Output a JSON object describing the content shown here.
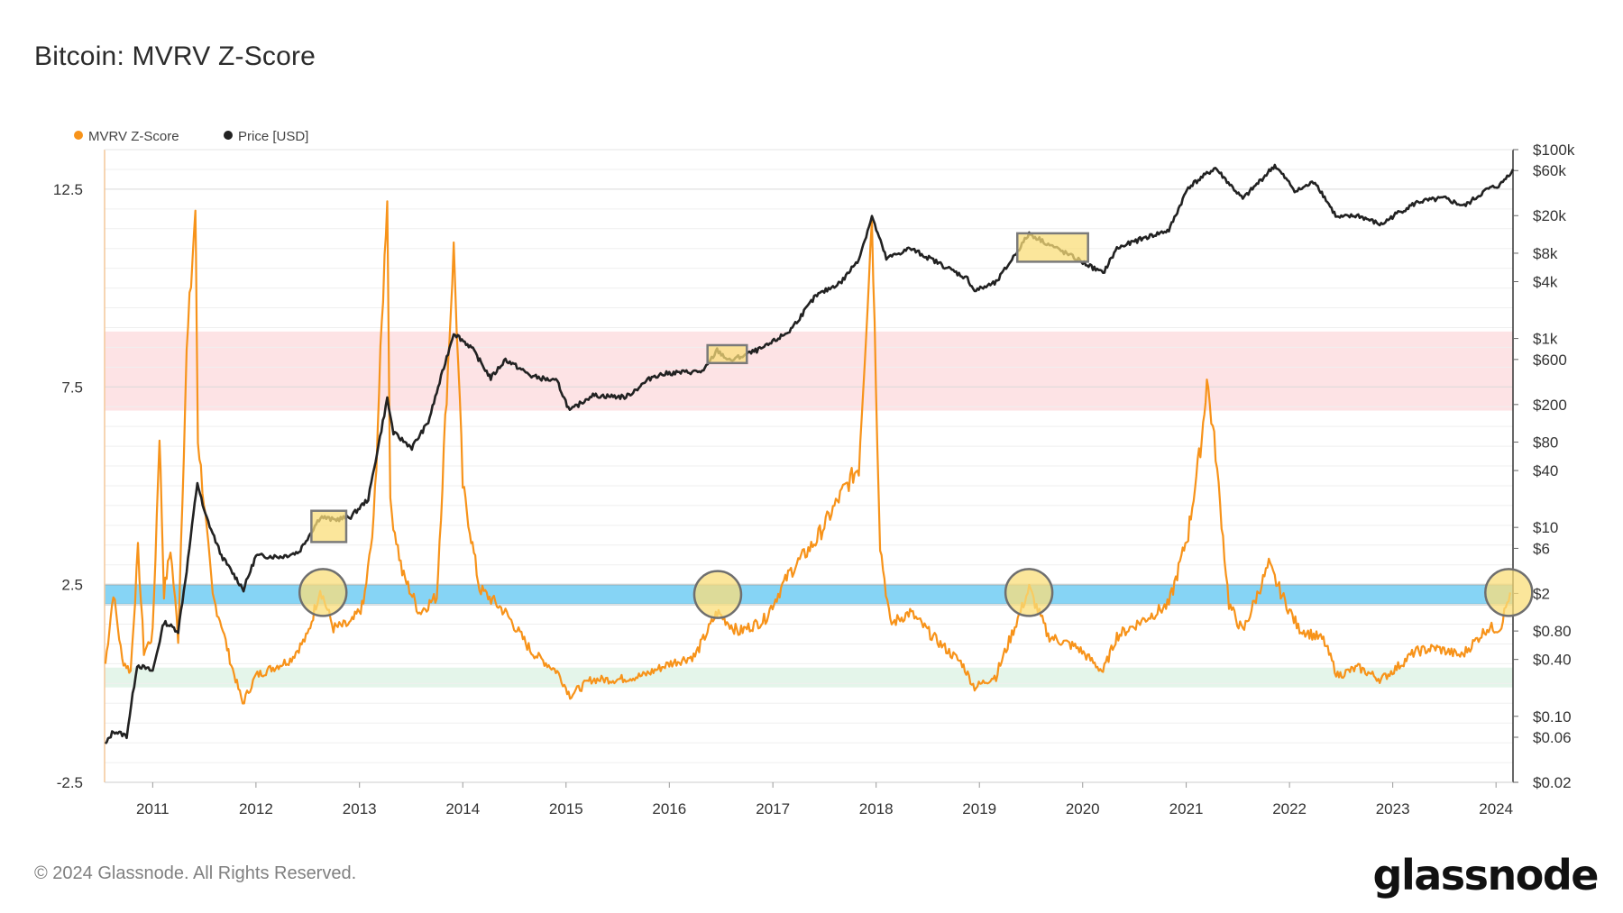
{
  "title": "Bitcoin: MVRV Z-Score",
  "footer": {
    "copyright": "© 2024 Glassnode. All Rights Reserved.",
    "logo_text": "glassnode"
  },
  "colors": {
    "zscore": "#f7931a",
    "price": "#222222",
    "red_band": "#fde3e5",
    "green_band": "#e4f5ea",
    "blue_band": "#86d4f5",
    "highlight": "#f9dd7a"
  },
  "chart_data": {
    "type": "line",
    "legend": {
      "placement": "top-left",
      "items": [
        {
          "label": "MVRV Z-Score",
          "color": "#f7931a"
        },
        {
          "label": "Price [USD]",
          "color": "#222222"
        }
      ]
    },
    "x_range": [
      "2010-07-15",
      "2024-03-01"
    ],
    "x_ticks": [
      "2011",
      "2012",
      "2013",
      "2014",
      "2015",
      "2016",
      "2017",
      "2018",
      "2019",
      "2020",
      "2021",
      "2022",
      "2023",
      "2024"
    ],
    "left_axis": {
      "scale": "linear",
      "range": [
        -2.5,
        13.5
      ],
      "ticks": [
        -2.5,
        2.5,
        7.5,
        12.5
      ],
      "tick_labels": [
        "-2.5",
        "2.5",
        "7.5",
        "12.5"
      ]
    },
    "right_axis": {
      "scale": "log",
      "range": [
        0.02,
        100000
      ],
      "ticks": [
        0.02,
        0.06,
        0.1,
        0.4,
        0.8,
        2,
        6,
        10,
        40,
        80,
        200,
        600,
        1000,
        4000,
        8000,
        20000,
        60000,
        100000
      ],
      "tick_labels": [
        "$0.02",
        "$0.06",
        "$0.10",
        "$0.40",
        "$0.80",
        "$2",
        "$6",
        "$10",
        "$40",
        "$80",
        "$200",
        "$600",
        "$1k",
        "$4k",
        "$8k",
        "$20k",
        "$60k",
        "$100k"
      ]
    },
    "bands": [
      {
        "name": "red",
        "axis": "left",
        "from": 6.9,
        "to": 8.9
      },
      {
        "name": "blue",
        "axis": "left",
        "from": 2.0,
        "to": 2.5
      },
      {
        "name": "green",
        "axis": "left",
        "from": -0.1,
        "to": 0.4
      }
    ],
    "series": [
      {
        "name": "MVRV Z-Score",
        "axis": "left",
        "points": [
          [
            "2010-07-18",
            0.5
          ],
          [
            "2010-08-15",
            2.3
          ],
          [
            "2010-09-15",
            0.6
          ],
          [
            "2010-10-15",
            0.3
          ],
          [
            "2010-11-10",
            3.4
          ],
          [
            "2010-12-01",
            0.8
          ],
          [
            "2011-01-01",
            1.2
          ],
          [
            "2011-01-25",
            6.3
          ],
          [
            "2011-02-10",
            2.3
          ],
          [
            "2011-03-05",
            3.4
          ],
          [
            "2011-04-01",
            1.2
          ],
          [
            "2011-05-01",
            8.3
          ],
          [
            "2011-06-01",
            12.0
          ],
          [
            "2011-06-10",
            6.2
          ],
          [
            "2011-07-01",
            4.6
          ],
          [
            "2011-08-01",
            2.2
          ],
          [
            "2011-09-01",
            1.5
          ],
          [
            "2011-10-01",
            0.6
          ],
          [
            "2011-11-15",
            -0.5
          ],
          [
            "2012-01-01",
            0.2
          ],
          [
            "2012-03-01",
            0.4
          ],
          [
            "2012-05-01",
            0.6
          ],
          [
            "2012-07-01",
            1.2
          ],
          [
            "2012-08-15",
            2.4
          ],
          [
            "2012-10-01",
            1.4
          ],
          [
            "2012-12-01",
            1.5
          ],
          [
            "2013-01-15",
            2.0
          ],
          [
            "2013-02-20",
            4.0
          ],
          [
            "2013-04-09",
            12.4
          ],
          [
            "2013-04-20",
            4.5
          ],
          [
            "2013-06-01",
            2.8
          ],
          [
            "2013-08-01",
            1.8
          ],
          [
            "2013-10-01",
            2.2
          ],
          [
            "2013-11-30",
            11.0
          ],
          [
            "2014-01-01",
            5.0
          ],
          [
            "2014-03-01",
            2.4
          ],
          [
            "2014-06-01",
            1.8
          ],
          [
            "2014-09-01",
            0.8
          ],
          [
            "2014-12-01",
            0.3
          ],
          [
            "2015-01-15",
            -0.3
          ],
          [
            "2015-04-01",
            0.1
          ],
          [
            "2015-07-01",
            0.1
          ],
          [
            "2015-10-01",
            0.2
          ],
          [
            "2016-01-01",
            0.5
          ],
          [
            "2016-04-01",
            0.7
          ],
          [
            "2016-06-18",
            1.8
          ],
          [
            "2016-09-01",
            1.3
          ],
          [
            "2016-12-01",
            1.6
          ],
          [
            "2017-03-01",
            2.8
          ],
          [
            "2017-06-01",
            3.6
          ],
          [
            "2017-09-01",
            4.8
          ],
          [
            "2017-11-01",
            5.5
          ],
          [
            "2017-12-17",
            11.8
          ],
          [
            "2018-01-15",
            3.5
          ],
          [
            "2018-02-20",
            1.5
          ],
          [
            "2018-05-01",
            1.8
          ],
          [
            "2018-08-01",
            1.1
          ],
          [
            "2018-11-01",
            0.5
          ],
          [
            "2018-12-15",
            -0.1
          ],
          [
            "2019-03-01",
            0.2
          ],
          [
            "2019-06-26",
            2.4
          ],
          [
            "2019-09-01",
            1.2
          ],
          [
            "2019-12-15",
            0.9
          ],
          [
            "2020-03-13",
            0.3
          ],
          [
            "2020-05-01",
            1.2
          ],
          [
            "2020-08-01",
            1.6
          ],
          [
            "2020-11-01",
            2.0
          ],
          [
            "2021-01-08",
            3.8
          ],
          [
            "2021-02-25",
            6.2
          ],
          [
            "2021-03-15",
            7.7
          ],
          [
            "2021-04-15",
            5.8
          ],
          [
            "2021-06-01",
            2.0
          ],
          [
            "2021-07-20",
            1.3
          ],
          [
            "2021-10-20",
            3.0
          ],
          [
            "2021-12-01",
            2.3
          ],
          [
            "2022-02-01",
            1.4
          ],
          [
            "2022-05-01",
            1.1
          ],
          [
            "2022-06-20",
            0.2
          ],
          [
            "2022-09-01",
            0.4
          ],
          [
            "2022-11-21",
            0.1
          ],
          [
            "2023-01-15",
            0.4
          ],
          [
            "2023-03-20",
            0.8
          ],
          [
            "2023-06-01",
            0.9
          ],
          [
            "2023-09-01",
            0.7
          ],
          [
            "2023-12-01",
            1.4
          ],
          [
            "2024-01-15",
            1.4
          ],
          [
            "2024-02-20",
            2.3
          ]
        ]
      },
      {
        "name": "Price [USD]",
        "axis": "right",
        "points": [
          [
            "2010-07-18",
            0.05
          ],
          [
            "2010-08-15",
            0.07
          ],
          [
            "2010-10-01",
            0.062
          ],
          [
            "2010-11-07",
            0.35
          ],
          [
            "2011-01-01",
            0.3
          ],
          [
            "2011-02-10",
            1.0
          ],
          [
            "2011-04-01",
            0.8
          ],
          [
            "2011-05-01",
            3.5
          ],
          [
            "2011-06-08",
            30
          ],
          [
            "2011-07-01",
            15
          ],
          [
            "2011-09-01",
            5
          ],
          [
            "2011-11-18",
            2.2
          ],
          [
            "2012-01-01",
            5.0
          ],
          [
            "2012-04-01",
            4.9
          ],
          [
            "2012-06-01",
            5.5
          ],
          [
            "2012-08-16",
            13
          ],
          [
            "2012-10-01",
            12
          ],
          [
            "2012-12-01",
            13
          ],
          [
            "2013-02-01",
            20
          ],
          [
            "2013-04-09",
            230
          ],
          [
            "2013-05-01",
            100
          ],
          [
            "2013-07-05",
            70
          ],
          [
            "2013-09-01",
            130
          ],
          [
            "2013-11-30",
            1150
          ],
          [
            "2014-02-01",
            800
          ],
          [
            "2014-04-10",
            380
          ],
          [
            "2014-06-01",
            600
          ],
          [
            "2014-09-01",
            400
          ],
          [
            "2014-12-01",
            350
          ],
          [
            "2015-01-14",
            170
          ],
          [
            "2015-04-01",
            250
          ],
          [
            "2015-08-01",
            240
          ],
          [
            "2015-11-05",
            400
          ],
          [
            "2016-01-01",
            430
          ],
          [
            "2016-05-01",
            450
          ],
          [
            "2016-06-18",
            750
          ],
          [
            "2016-08-01",
            580
          ],
          [
            "2016-12-01",
            800
          ],
          [
            "2017-03-01",
            1200
          ],
          [
            "2017-06-01",
            2800
          ],
          [
            "2017-09-01",
            4000
          ],
          [
            "2017-11-01",
            7000
          ],
          [
            "2017-12-17",
            19500
          ],
          [
            "2018-02-06",
            7000
          ],
          [
            "2018-05-01",
            9000
          ],
          [
            "2018-08-01",
            6500
          ],
          [
            "2018-11-20",
            4300
          ],
          [
            "2018-12-15",
            3200
          ],
          [
            "2019-03-01",
            3900
          ],
          [
            "2019-06-26",
            12900
          ],
          [
            "2019-09-01",
            10000
          ],
          [
            "2019-12-17",
            6800
          ],
          [
            "2020-03-13",
            4900
          ],
          [
            "2020-05-01",
            9000
          ],
          [
            "2020-08-01",
            11500
          ],
          [
            "2020-11-01",
            14000
          ],
          [
            "2021-01-08",
            40000
          ],
          [
            "2021-04-14",
            64000
          ],
          [
            "2021-07-20",
            30000
          ],
          [
            "2021-11-10",
            68000
          ],
          [
            "2022-01-24",
            36000
          ],
          [
            "2022-04-01",
            46000
          ],
          [
            "2022-06-18",
            19000
          ],
          [
            "2022-09-01",
            20000
          ],
          [
            "2022-11-21",
            16000
          ],
          [
            "2023-01-15",
            21000
          ],
          [
            "2023-04-01",
            28000
          ],
          [
            "2023-07-01",
            30500
          ],
          [
            "2023-09-11",
            25200
          ],
          [
            "2023-12-01",
            38000
          ],
          [
            "2024-01-15",
            42000
          ],
          [
            "2024-03-01",
            62000
          ]
        ]
      }
    ],
    "annotations": {
      "circles": [
        {
          "x": "2012-08-25",
          "y": 2.3
        },
        {
          "x": "2016-06-20",
          "y": 2.25
        },
        {
          "x": "2019-06-25",
          "y": 2.3
        },
        {
          "x": "2024-02-15",
          "y": 2.3
        }
      ],
      "boxes": [
        {
          "x0": "2012-07-15",
          "x1": "2012-11-15",
          "axis": "right",
          "y0": 7,
          "y1": 15
        },
        {
          "x0": "2016-05-15",
          "x1": "2016-10-01",
          "axis": "right",
          "y0": 550,
          "y1": 850
        },
        {
          "x0": "2019-05-15",
          "x1": "2020-01-20",
          "axis": "right",
          "y0": 6500,
          "y1": 13000
        }
      ]
    }
  }
}
